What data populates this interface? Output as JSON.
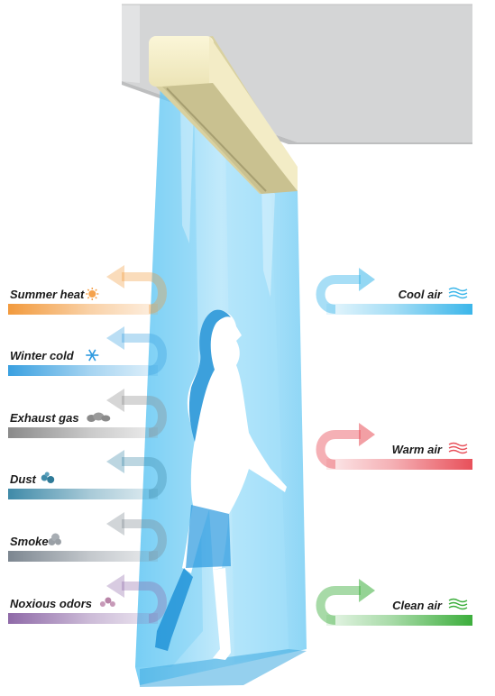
{
  "blocked_factors": [
    {
      "label": "Summer heat",
      "icon": "sun-icon",
      "color": "#f29a3d"
    },
    {
      "label": "Winter cold",
      "icon": "snowflake-icon",
      "color": "#3aa0e0"
    },
    {
      "label": "Exhaust gas",
      "icon": "exhaust-cloud-icon",
      "color": "#8a8a8a"
    },
    {
      "label": "Dust",
      "icon": "dust-icon",
      "color": "#3f8aa8"
    },
    {
      "label": "Smoke",
      "icon": "smoke-icon",
      "color": "#7c8690"
    },
    {
      "label": "Noxious odors",
      "icon": "odor-icon",
      "color": "#8f6aa8"
    }
  ],
  "retained_factors": [
    {
      "label": "Cool air",
      "icon": "cool-wave-icon",
      "color": "#3bb6ea"
    },
    {
      "label": "Warm air",
      "icon": "warm-wave-icon",
      "color": "#e8505a"
    },
    {
      "label": "Clean air",
      "icon": "clean-wave-icon",
      "color": "#3cae3c"
    }
  ]
}
